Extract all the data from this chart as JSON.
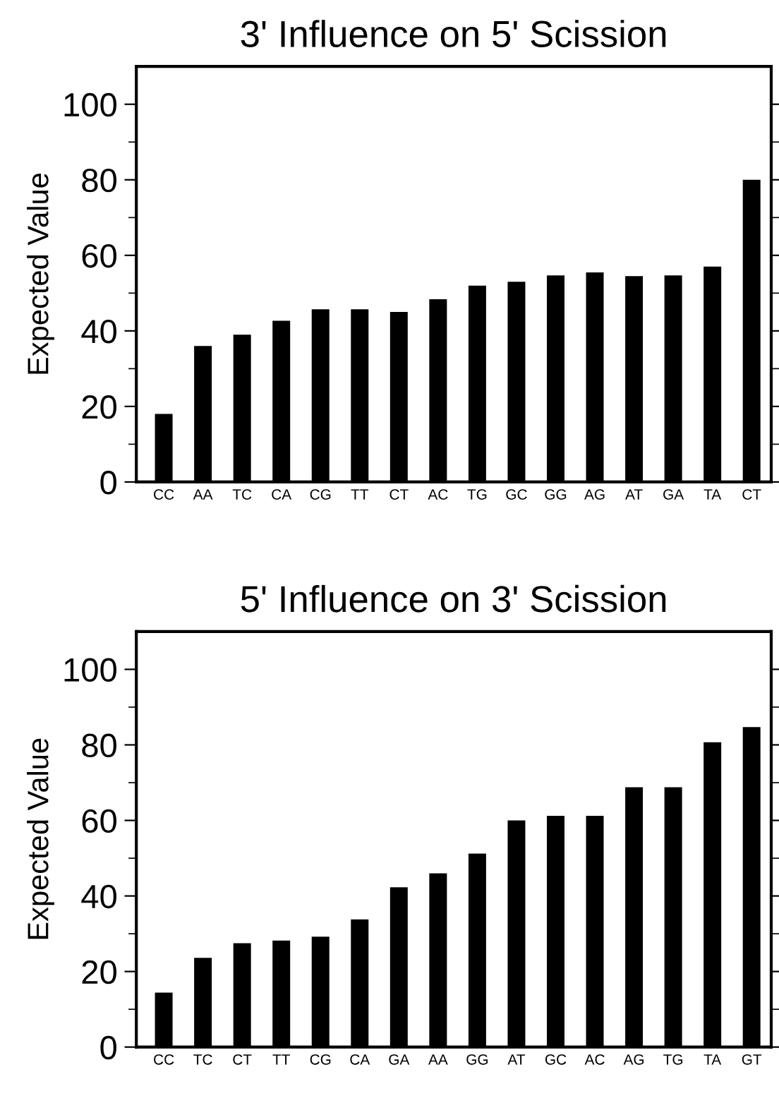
{
  "chart_data": [
    {
      "type": "bar",
      "title": "3' Influence on 5' Scission",
      "ylabel": "Expected Value",
      "categories": [
        "CC",
        "AA",
        "TC",
        "CA",
        "CG",
        "TT",
        "CT",
        "AC",
        "TG",
        "GC",
        "GG",
        "AG",
        "AT",
        "GA",
        "TA",
        "CT"
      ],
      "values": [
        18,
        36,
        39,
        42.7,
        45.7,
        45.7,
        45,
        48.4,
        52,
        53,
        54.7,
        55.5,
        54.5,
        54.7,
        57,
        80
      ],
      "color": "#000000",
      "ylim": [
        0,
        110
      ],
      "yticks": [
        0,
        {
          "value": 10,
          "label": null
        },
        20,
        {
          "value": 30,
          "label": null
        },
        40,
        {
          "value": 50,
          "label": null
        },
        60,
        {
          "value": 70,
          "label": null
        },
        80,
        {
          "value": 90,
          "label": null
        },
        100
      ],
      "grid": false,
      "legend": false
    },
    {
      "type": "bar",
      "title": "5' Influence on 3' Scission",
      "ylabel": "Expected Value",
      "categories": [
        "CC",
        "TC",
        "CT",
        "TT",
        "CG",
        "CA",
        "GA",
        "AA",
        "GG",
        "AT",
        "GC",
        "AC",
        "AG",
        "TG",
        "TA",
        "GT"
      ],
      "values": [
        14.4,
        23.6,
        27.5,
        28.2,
        29.2,
        33.8,
        42.3,
        46,
        51.2,
        60,
        61.2,
        61.2,
        68.8,
        68.8,
        80.7,
        84.7
      ],
      "color": "#000000",
      "ylim": [
        0,
        110
      ],
      "yticks": [
        0,
        {
          "value": 10,
          "label": null
        },
        20,
        {
          "value": 30,
          "label": null
        },
        40,
        {
          "value": 50,
          "label": null
        },
        60,
        {
          "value": 70,
          "label": null
        },
        80,
        {
          "value": 90,
          "label": null
        },
        100
      ],
      "grid": false,
      "legend": false
    }
  ]
}
